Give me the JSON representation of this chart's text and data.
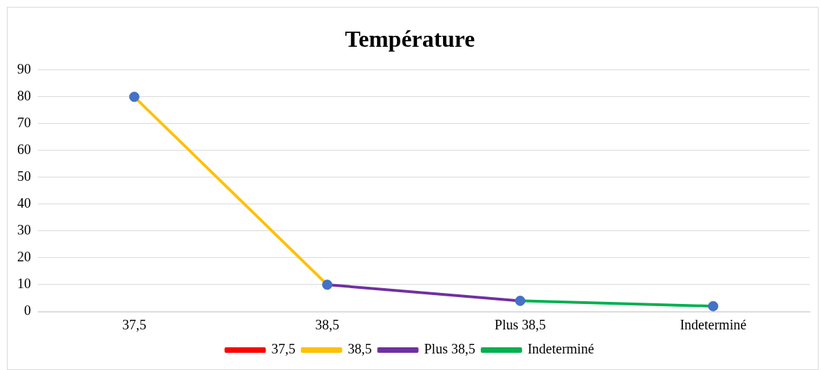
{
  "chart_data": {
    "type": "line",
    "title": "Température",
    "categories": [
      "37,5",
      "38,5",
      "Plus 38,5",
      "Indeterminé"
    ],
    "series": [
      {
        "name": "37,5",
        "color": "#ff0000",
        "values": [
          null,
          null,
          null,
          null
        ]
      },
      {
        "name": "38,5",
        "color": "#ffc000",
        "values": [
          80,
          10,
          null,
          null
        ]
      },
      {
        "name": "Plus 38,5",
        "color": "#7030a0",
        "values": [
          null,
          10,
          4,
          null
        ]
      },
      {
        "name": "Indeterminé",
        "color": "#00b050",
        "values": [
          null,
          null,
          4,
          2
        ]
      },
      {
        "type": "scatter",
        "color": "#4472c4",
        "marker": "circle",
        "values": [
          80,
          10,
          4,
          2
        ]
      }
    ],
    "ylim": [
      0,
      90
    ],
    "yticks": [
      0,
      10,
      20,
      30,
      40,
      50,
      60,
      70,
      80,
      90
    ],
    "grid": "y",
    "legend": "bottom",
    "marker": "none",
    "line_style": "solid"
  }
}
